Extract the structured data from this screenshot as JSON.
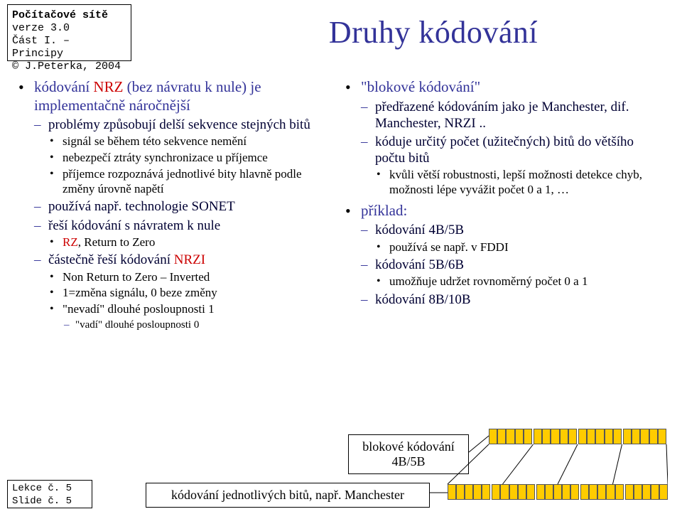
{
  "header": {
    "line1_bold": "Počítačové sítě",
    "line2": "verze 3.0",
    "line3": "Část I. – Principy",
    "line4": "© J.Peterka, 2004"
  },
  "title": "Druhy kódování",
  "left": {
    "b1": "kódování ",
    "b1_red": "NRZ",
    "b1_after": " (bez návratu k nule) je implementačně náročnější",
    "b1_s1": "problémy způsobují delší sekvence stejných bitů",
    "b1_s1_a": "signál se během této sekvence nemění",
    "b1_s1_b": "nebezpečí ztráty synchronizace u příjemce",
    "b1_s1_c": "příjemce rozpoznává jednotlivé bity hlavně podle změny úrovně napětí",
    "b1_s2": "používá např. technologie SONET",
    "b1_s3": "řeší kódování s návratem k nule",
    "b1_s3_a_red": "RZ",
    "b1_s3_a_after": ", Return to Zero",
    "b1_s4": "částečně řeší kódování ",
    "b1_s4_red": "NRZI",
    "b1_s4_a": "Non Return to Zero – Inverted",
    "b1_s4_b": "1=změna signálu, 0 beze změny",
    "b1_s4_c": "\"nevadí\" dlouhé posloupnosti 1",
    "b1_s4_c_1": "\"vadí\" dlouhé posloupnosti 0"
  },
  "right": {
    "b1": "\"blokové kódování\"",
    "b1_s1": "předřazené kódováním jako je Manchester, dif. Manchester, NRZI ..",
    "b1_s2": "kóduje určitý počet (užitečných) bitů do většího počtu bitů",
    "b1_s2_a": "kvůli větší robustnosti, lepší možnosti detekce chyb, možnosti lépe vyvážit počet 0 a 1, …",
    "b2": "příklad:",
    "b2_s1": "kódování 4B/5B",
    "b2_s1_a": "používá se např. v FDDI",
    "b2_s2": "kódování 5B/6B",
    "b2_s2_a": "umožňuje udržet rovnoměrný počet 0 a 1",
    "b2_s3": "kódování 8B/10B"
  },
  "diagram": {
    "box_left_l1": "blokové kódování",
    "box_left_l2": "4B/5B",
    "box_bottom": "kódování jednotlivých bitů, např. Manchester",
    "top_cells": 20,
    "bot_cells": 25,
    "top_color": "#ffcc00",
    "bot_color": "#ffcc00",
    "cell_border": "#555555"
  },
  "footer": {
    "l1": "Lekce č. 5",
    "l2": "Slide č. 5"
  }
}
